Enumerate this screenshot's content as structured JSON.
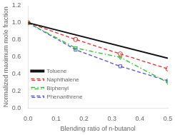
{
  "chart_data": {
    "type": "line",
    "xlabel": "Blending ratio of n-butanol",
    "ylabel": "Normalized maximum mole fraction",
    "xlim": [
      0.0,
      0.5
    ],
    "ylim": [
      0.0,
      1.2
    ],
    "xticks": [
      {
        "value": 0,
        "label": "0.0"
      },
      0.1,
      0.2,
      0.3,
      0.4,
      0.5
    ],
    "yticks": [
      {
        "value": 0,
        "label": "0.0"
      },
      0.2,
      0.4,
      0.6,
      0.8,
      {
        "value": 1,
        "label": "1.0"
      },
      1.2
    ],
    "grid": false,
    "legend": "lower left",
    "series": [
      {
        "name": "Toluene",
        "color": "#111111",
        "line_style": "solid",
        "marker": null,
        "x": [
          0.0,
          0.5
        ],
        "values": [
          1.0,
          0.585
        ]
      },
      {
        "name": "Naphthalene",
        "color": "#e03030",
        "line_style": "dashed",
        "marker": "circle",
        "x": [
          0.0,
          0.17,
          0.33,
          0.5
        ],
        "values": [
          1.0,
          0.805,
          0.635,
          0.46
        ]
      },
      {
        "name": "Biphenyl",
        "color": "#28c028",
        "line_style": "dashdot",
        "marker": "triangle_down",
        "x": [
          0.0,
          0.17,
          0.33,
          0.5
        ],
        "values": [
          1.0,
          0.705,
          0.595,
          0.3
        ]
      },
      {
        "name": "Phenanthrene",
        "color": "#5555cc",
        "line_style": "dashed",
        "marker": "square",
        "x": [
          0.0,
          0.17,
          0.33,
          0.5
        ],
        "values": [
          1.0,
          0.685,
          0.49,
          0.32
        ]
      }
    ]
  }
}
